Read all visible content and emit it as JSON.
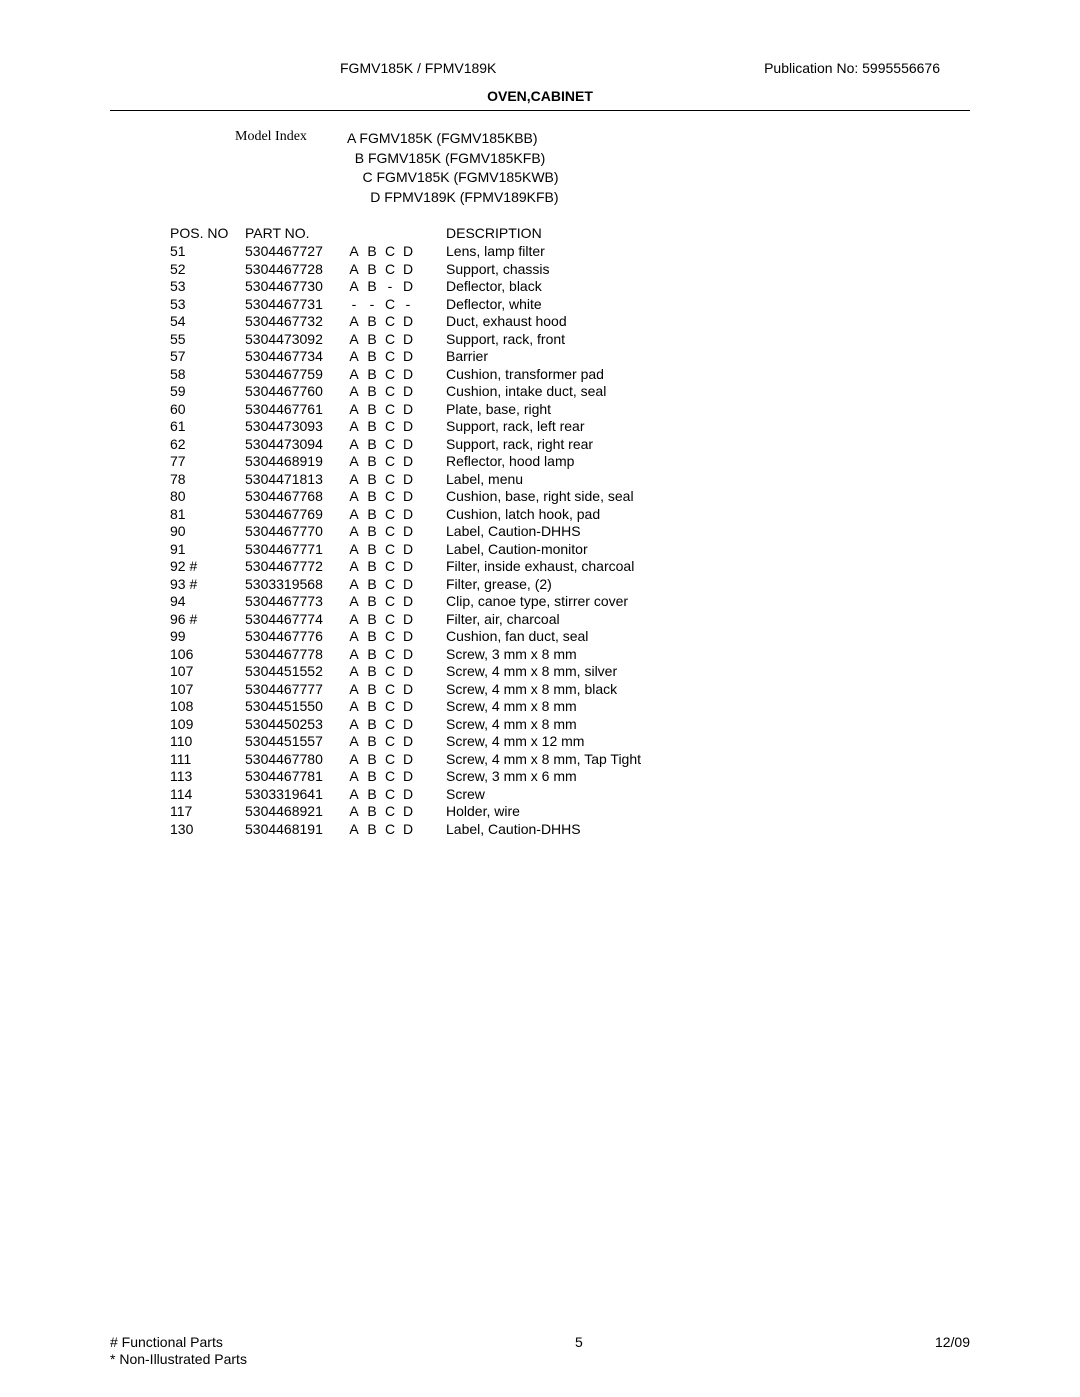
{
  "header": {
    "model_line": "FGMV185K / FPMV189K",
    "publication": "Publication No:  5995556676"
  },
  "section_title": "OVEN,CABINET",
  "model_index": {
    "label": "Model Index",
    "items": [
      {
        "letter": "A",
        "name": "FGMV185K (FGMV185KBB)"
      },
      {
        "letter": "B",
        "name": "FGMV185K (FGMV185KFB)"
      },
      {
        "letter": "C",
        "name": "FGMV185K (FGMV185KWB)"
      },
      {
        "letter": "D",
        "name": "FPMV189K (FPMV189KFB)"
      }
    ]
  },
  "columns": {
    "pos": "POS. NO",
    "part": "PART NO.",
    "desc": "DESCRIPTION"
  },
  "rows": [
    {
      "pos": "51",
      "part": "5304467727",
      "m": [
        "A",
        "B",
        "C",
        "D"
      ],
      "desc": "Lens, lamp filter"
    },
    {
      "pos": "52",
      "part": "5304467728",
      "m": [
        "A",
        "B",
        "C",
        "D"
      ],
      "desc": "Support, chassis"
    },
    {
      "pos": "53",
      "part": "5304467730",
      "m": [
        "A",
        "B",
        "-",
        "D"
      ],
      "desc": "Deflector, black"
    },
    {
      "pos": "53",
      "part": "5304467731",
      "m": [
        "-",
        "-",
        "C",
        "-"
      ],
      "desc": "Deflector, white"
    },
    {
      "pos": "54",
      "part": "5304467732",
      "m": [
        "A",
        "B",
        "C",
        "D"
      ],
      "desc": "Duct, exhaust hood"
    },
    {
      "pos": "55",
      "part": "5304473092",
      "m": [
        "A",
        "B",
        "C",
        "D"
      ],
      "desc": "Support, rack, front"
    },
    {
      "pos": "57",
      "part": "5304467734",
      "m": [
        "A",
        "B",
        "C",
        "D"
      ],
      "desc": "Barrier"
    },
    {
      "pos": "58",
      "part": "5304467759",
      "m": [
        "A",
        "B",
        "C",
        "D"
      ],
      "desc": "Cushion, transformer pad"
    },
    {
      "pos": "59",
      "part": "5304467760",
      "m": [
        "A",
        "B",
        "C",
        "D"
      ],
      "desc": "Cushion, intake duct, seal"
    },
    {
      "pos": "60",
      "part": "5304467761",
      "m": [
        "A",
        "B",
        "C",
        "D"
      ],
      "desc": "Plate, base, right"
    },
    {
      "pos": "61",
      "part": "5304473093",
      "m": [
        "A",
        "B",
        "C",
        "D"
      ],
      "desc": "Support, rack, left rear"
    },
    {
      "pos": "62",
      "part": "5304473094",
      "m": [
        "A",
        "B",
        "C",
        "D"
      ],
      "desc": "Support, rack, right rear"
    },
    {
      "pos": "77",
      "part": "5304468919",
      "m": [
        "A",
        "B",
        "C",
        "D"
      ],
      "desc": "Reflector, hood lamp"
    },
    {
      "pos": "78",
      "part": "5304471813",
      "m": [
        "A",
        "B",
        "C",
        "D"
      ],
      "desc": "Label, menu"
    },
    {
      "pos": "80",
      "part": "5304467768",
      "m": [
        "A",
        "B",
        "C",
        "D"
      ],
      "desc": "Cushion, base, right side, seal"
    },
    {
      "pos": "81",
      "part": "5304467769",
      "m": [
        "A",
        "B",
        "C",
        "D"
      ],
      "desc": "Cushion, latch hook, pad"
    },
    {
      "pos": "90",
      "part": "5304467770",
      "m": [
        "A",
        "B",
        "C",
        "D"
      ],
      "desc": "Label, Caution-DHHS"
    },
    {
      "pos": "91",
      "part": "5304467771",
      "m": [
        "A",
        "B",
        "C",
        "D"
      ],
      "desc": "Label, Caution-monitor"
    },
    {
      "pos": "92 #",
      "part": "5304467772",
      "m": [
        "A",
        "B",
        "C",
        "D"
      ],
      "desc": "Filter, inside exhaust, charcoal"
    },
    {
      "pos": "93 #",
      "part": "5303319568",
      "m": [
        "A",
        "B",
        "C",
        "D"
      ],
      "desc": "Filter, grease, (2)"
    },
    {
      "pos": "94",
      "part": "5304467773",
      "m": [
        "A",
        "B",
        "C",
        "D"
      ],
      "desc": "Clip, canoe type, stirrer cover"
    },
    {
      "pos": "96 #",
      "part": "5304467774",
      "m": [
        "A",
        "B",
        "C",
        "D"
      ],
      "desc": "Filter, air, charcoal"
    },
    {
      "pos": "99",
      "part": "5304467776",
      "m": [
        "A",
        "B",
        "C",
        "D"
      ],
      "desc": "Cushion, fan duct, seal"
    },
    {
      "pos": "106",
      "part": "5304467778",
      "m": [
        "A",
        "B",
        "C",
        "D"
      ],
      "desc": "Screw, 3 mm x 8 mm"
    },
    {
      "pos": "107",
      "part": "5304451552",
      "m": [
        "A",
        "B",
        "C",
        "D"
      ],
      "desc": "Screw, 4 mm x 8 mm, silver"
    },
    {
      "pos": "107",
      "part": "5304467777",
      "m": [
        "A",
        "B",
        "C",
        "D"
      ],
      "desc": "Screw, 4 mm x 8 mm, black"
    },
    {
      "pos": "108",
      "part": "5304451550",
      "m": [
        "A",
        "B",
        "C",
        "D"
      ],
      "desc": "Screw, 4 mm x 8 mm"
    },
    {
      "pos": "109",
      "part": "5304450253",
      "m": [
        "A",
        "B",
        "C",
        "D"
      ],
      "desc": "Screw, 4 mm x 8 mm"
    },
    {
      "pos": "110",
      "part": "5304451557",
      "m": [
        "A",
        "B",
        "C",
        "D"
      ],
      "desc": "Screw, 4 mm x 12 mm"
    },
    {
      "pos": "111",
      "part": "5304467780",
      "m": [
        "A",
        "B",
        "C",
        "D"
      ],
      "desc": "Screw, 4 mm x 8 mm, Tap Tight"
    },
    {
      "pos": "113",
      "part": "5304467781",
      "m": [
        "A",
        "B",
        "C",
        "D"
      ],
      "desc": "Screw, 3 mm x 6 mm"
    },
    {
      "pos": "114",
      "part": "5303319641",
      "m": [
        "A",
        "B",
        "C",
        "D"
      ],
      "desc": "Screw"
    },
    {
      "pos": "117",
      "part": "5304468921",
      "m": [
        "A",
        "B",
        "C",
        "D"
      ],
      "desc": "Holder, wire"
    },
    {
      "pos": "130",
      "part": "5304468191",
      "m": [
        "A",
        "B",
        "C",
        "D"
      ],
      "desc": "Label, Caution-DHHS"
    }
  ],
  "footer": {
    "note1": "# Functional Parts",
    "note2": "* Non-Illustrated Parts",
    "page": "5",
    "date": "12/09"
  }
}
